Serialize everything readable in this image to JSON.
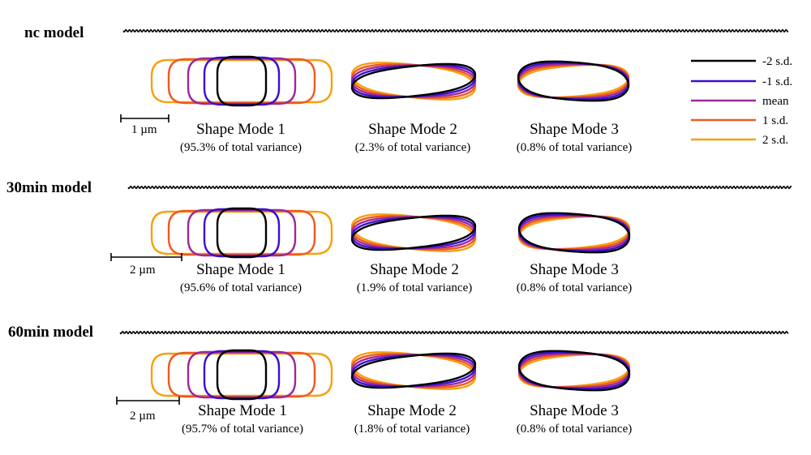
{
  "palette": {
    "m2": "#000000",
    "m1": "#3b0fcf",
    "mean": "#9b2a9a",
    "p1": "#ef5a1e",
    "p2": "#f7a00e"
  },
  "legend": [
    {
      "key": "m2",
      "label": "-2 s.d."
    },
    {
      "key": "m1",
      "label": "-1 s.d."
    },
    {
      "key": "mean",
      "label": "mean"
    },
    {
      "key": "p1",
      "label": "1 s.d."
    },
    {
      "key": "p2",
      "label": "2 s.d."
    }
  ],
  "rows": [
    {
      "title": "nc model",
      "scale_label": "1 µm",
      "modes": [
        {
          "name": "Shape Mode 1",
          "variance": "(95.3% of total variance)"
        },
        {
          "name": "Shape Mode 2",
          "variance": "(2.3% of total variance)"
        },
        {
          "name": "Shape Mode 3",
          "variance": "(0.8% of total variance)"
        }
      ]
    },
    {
      "title": "30min model",
      "scale_label": "2 µm",
      "modes": [
        {
          "name": "Shape Mode 1",
          "variance": "(95.6% of total variance)"
        },
        {
          "name": "Shape Mode 2",
          "variance": "(1.9% of total variance)"
        },
        {
          "name": "Shape Mode 3",
          "variance": "(0.8% of total variance)"
        }
      ]
    },
    {
      "title": "60min model",
      "scale_label": "2 µm",
      "modes": [
        {
          "name": "Shape Mode 1",
          "variance": "(95.7% of total variance)"
        },
        {
          "name": "Shape Mode 2",
          "variance": "(1.8% of total variance)"
        },
        {
          "name": "Shape Mode 3",
          "variance": "(0.8% of total variance)"
        }
      ]
    }
  ]
}
